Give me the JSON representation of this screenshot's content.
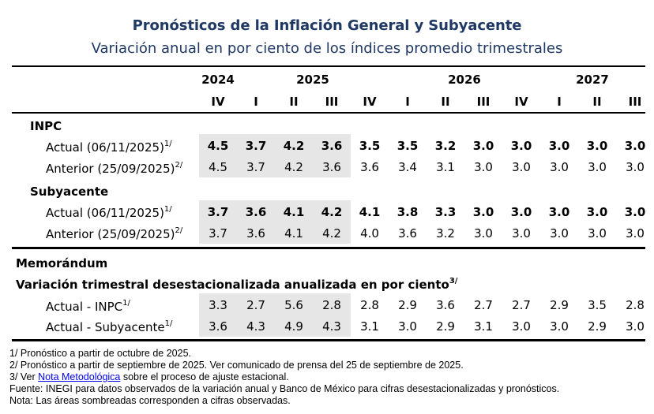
{
  "title": "Pronósticos de la Inflación General y Subyacente",
  "subtitle": "Variación anual en por ciento de los índices promedio trimestrales",
  "years": [
    "2024",
    "2025",
    "2026",
    "2027"
  ],
  "quarters": [
    "IV",
    "I",
    "II",
    "III",
    "IV",
    "I",
    "II",
    "III",
    "IV",
    "I",
    "II",
    "III"
  ],
  "inpc": {
    "heading": "INPC",
    "actual_label": "Actual (06/11/2025)",
    "actual_sup": "1/",
    "actual_values": [
      "4.5",
      "3.7",
      "4.2",
      "3.6",
      "3.5",
      "3.5",
      "3.2",
      "3.0",
      "3.0",
      "3.0",
      "3.0",
      "3.0"
    ],
    "anterior_label": "Anterior (25/09/2025)",
    "anterior_sup": "2/",
    "anterior_values": [
      "4.5",
      "3.7",
      "4.2",
      "3.6",
      "3.6",
      "3.4",
      "3.1",
      "3.0",
      "3.0",
      "3.0",
      "3.0",
      "3.0"
    ]
  },
  "subyacente": {
    "heading": "Subyacente",
    "actual_label": "Actual (06/11/2025)",
    "actual_sup": "1/",
    "actual_values": [
      "3.7",
      "3.6",
      "4.1",
      "4.2",
      "4.1",
      "3.8",
      "3.3",
      "3.0",
      "3.0",
      "3.0",
      "3.0",
      "3.0"
    ],
    "anterior_label": "Anterior (25/09/2025)",
    "anterior_sup": "2/",
    "anterior_values": [
      "3.7",
      "3.6",
      "4.1",
      "4.2",
      "4.0",
      "3.6",
      "3.2",
      "3.0",
      "3.0",
      "3.0",
      "3.0",
      "3.0"
    ]
  },
  "memorandum": {
    "heading": "Memorándum",
    "subheading": "Variación trimestral desestacionalizada anualizada en por ciento",
    "subheading_sup": "3/",
    "inpc_label": "Actual - INPC",
    "inpc_sup": "1/",
    "inpc_values": [
      "3.3",
      "2.7",
      "5.6",
      "2.8",
      "2.8",
      "2.9",
      "3.6",
      "2.7",
      "2.7",
      "2.9",
      "3.5",
      "2.8"
    ],
    "sub_label": "Actual - Subyacente",
    "sub_sup": "1/",
    "sub_values": [
      "3.6",
      "4.3",
      "4.9",
      "4.3",
      "3.1",
      "3.0",
      "2.9",
      "3.1",
      "3.0",
      "3.0",
      "2.9",
      "3.0"
    ]
  },
  "notes": {
    "n1": "1/ Pronóstico a partir de octubre de 2025.",
    "n2": "2/ Pronóstico a partir de septiembre de 2025. Ver comunicado de prensa del 25 de septiembre de 2025.",
    "n3_prefix": "3/ Ver ",
    "n3_link": "Nota Metodológica",
    "n3_suffix": " sobre el proceso de ajuste estacional.",
    "fuente": "Fuente: INEGI para datos observados de la variación anual y Banco de México para cifras desestacionalizadas y pronósticos.",
    "nota": "Nota: Las áreas sombreadas corresponden a cifras observadas."
  }
}
